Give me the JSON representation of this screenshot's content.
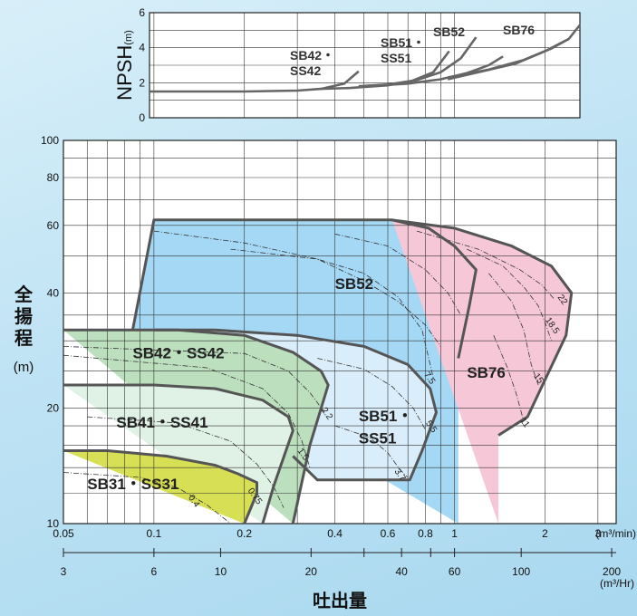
{
  "chart_data": [
    {
      "type": "line",
      "ylabel": "NPSH",
      "ylabel_unit": "(m)",
      "ylim": [
        0,
        6
      ],
      "y_ticks": [
        "0",
        "2",
        "4",
        "6"
      ],
      "series": [
        {
          "name": "SB42・SS42",
          "label_lines": [
            "SB42・",
            "SS42"
          ],
          "x": [
            0.05,
            0.09,
            0.2,
            0.3,
            0.36,
            0.43,
            0.48
          ],
          "y": [
            1.5,
            1.5,
            1.5,
            1.55,
            1.65,
            1.95,
            2.65
          ]
        },
        {
          "name": "SB51・SS51",
          "label_lines": [
            "SB51・",
            "SS51"
          ],
          "x": [
            0.36,
            0.45,
            0.6,
            0.72,
            0.85,
            0.96
          ],
          "y": [
            1.65,
            1.7,
            1.85,
            2.1,
            2.6,
            3.8
          ]
        },
        {
          "name": "SB52",
          "label_lines": [
            "SB52"
          ],
          "x": [
            0.48,
            0.6,
            0.75,
            0.9,
            1.05,
            1.18
          ],
          "y": [
            1.8,
            1.9,
            2.15,
            2.6,
            3.4,
            4.6
          ]
        },
        {
          "name": "SB76",
          "label_lines": [
            "SB76"
          ],
          "x": [
            0.95,
            1.2,
            1.6,
            2.0,
            2.4,
            2.8
          ],
          "y": [
            2.2,
            2.6,
            3.1,
            3.8,
            4.5,
            5.3
          ]
        }
      ],
      "extra_lines": [
        {
          "x": [
            0.5,
            0.7,
            0.9,
            1.1,
            1.3,
            1.45
          ],
          "y": [
            1.8,
            1.95,
            2.2,
            2.55,
            3.0,
            3.5
          ]
        },
        {
          "x": [
            0.95,
            1.3,
            1.7,
            2.1,
            2.4
          ],
          "y": [
            2.3,
            2.75,
            3.3,
            3.95,
            4.5
          ]
        }
      ]
    },
    {
      "type": "area",
      "ylabel": "全揚程",
      "ylabel_unit": "(m)",
      "xlabel": "吐出量",
      "ylim": [
        10,
        100
      ],
      "xlim": [
        0.05,
        3.45
      ],
      "log_x": true,
      "log_y": true,
      "y_ticks": [
        "10",
        "20",
        "40",
        "60",
        "80",
        "100"
      ],
      "x_ticks": [
        "0.05",
        "0.1",
        "0.2",
        "0.4",
        "0.6",
        "0.8",
        "1",
        "2",
        "3"
      ],
      "x_unit_min": "(m³/min)",
      "x2_ticks": [
        "3",
        "6",
        "10",
        "20",
        "40",
        "60",
        "100",
        "200"
      ],
      "x2_unit": "(m³/Hr)",
      "regions": [
        {
          "name": "SB52",
          "fill": "#a5d8f5",
          "outline_x": [
            0.085,
            0.1,
            0.62,
            0.82,
            1.0,
            1.18,
            1.12,
            1.03
          ],
          "outline_y": [
            32,
            62,
            62,
            59,
            53,
            46,
            37,
            27
          ]
        },
        {
          "name": "SB76",
          "fill": "#f6c7d7",
          "outline_x": [
            0.62,
            1.0,
            1.55,
            2.1,
            2.45,
            2.35,
            1.75,
            1.4
          ],
          "outline_y": [
            62,
            59,
            53,
            47,
            40,
            31,
            19,
            17
          ]
        },
        {
          "name": "SB51・SS51",
          "fill": "#d9eefa",
          "outline_x": [
            0.1,
            0.16,
            0.3,
            0.5,
            0.7,
            0.83,
            0.87,
            0.78,
            0.71,
            0.35,
            0.29
          ],
          "outline_y": [
            32,
            32,
            31,
            29,
            26,
            22.5,
            19.5,
            15.5,
            13,
            13,
            15
          ]
        },
        {
          "name": "SB42・SS42",
          "fill": "#bcdfbe",
          "outline_x": [
            0.05,
            0.12,
            0.2,
            0.29,
            0.36,
            0.38,
            0.33,
            0.29
          ],
          "outline_y": [
            32,
            32,
            31,
            28,
            25,
            23,
            16,
            10
          ]
        },
        {
          "name": "SB41・SS41",
          "fill": "#e0f1e5",
          "outline_x": [
            0.05,
            0.1,
            0.16,
            0.23,
            0.28,
            0.29,
            0.25,
            0.23
          ],
          "outline_y": [
            23,
            23,
            22.5,
            21,
            19,
            17.5,
            12.5,
            10
          ]
        },
        {
          "name": "SB31・SS31",
          "fill": "#d7df54",
          "outline_x": [
            0.05,
            0.07,
            0.11,
            0.16,
            0.19,
            0.22,
            0.22,
            0.2
          ],
          "outline_y": [
            15.5,
            15.5,
            15,
            14.2,
            13.5,
            12.8,
            12,
            10
          ]
        }
      ],
      "power_curves": [
        {
          "label": "0.4",
          "x": [
            0.05,
            0.09,
            0.12,
            0.15,
            0.18
          ],
          "y": [
            13.6,
            13.2,
            12.4,
            11.2,
            10
          ],
          "label_x": 0.13,
          "label_y": 11.7
        },
        {
          "label": "0.75",
          "x": [
            0.06,
            0.12,
            0.18,
            0.22,
            0.25,
            0.27
          ],
          "y": [
            19,
            18.3,
            16.4,
            14.3,
            12.5,
            11
          ],
          "label_x": 0.205,
          "label_y": 12.2
        },
        {
          "label": "1.5",
          "x": [
            0.05,
            0.15,
            0.23,
            0.28,
            0.31,
            0.33
          ],
          "y": [
            27.5,
            25.5,
            22.5,
            19.4,
            16.5,
            14
          ],
          "label_x": 0.3,
          "label_y": 15.5
        },
        {
          "label": "2.2",
          "x": [
            0.05,
            0.2,
            0.28,
            0.33,
            0.37
          ],
          "y": [
            29,
            27.8,
            25,
            22,
            19.5
          ],
          "label_x": 0.36,
          "label_y": 19.8
        },
        {
          "label": "3.7",
          "x": [
            0.4,
            0.52,
            0.6,
            0.66,
            0.7
          ],
          "y": [
            18,
            16.8,
            15.3,
            13.8,
            13.2
          ],
          "label_x": 0.63,
          "label_y": 13.7
        },
        {
          "label": "5.5",
          "x": [
            0.35,
            0.5,
            0.62,
            0.73,
            0.8
          ],
          "y": [
            27,
            25.3,
            22.8,
            20,
            17.6
          ],
          "label_x": 0.8,
          "label_y": 18.3
        },
        {
          "label": "7.5",
          "x": [
            0.18,
            0.35,
            0.5,
            0.65,
            0.78,
            0.85
          ],
          "y": [
            52,
            49,
            45,
            39,
            32,
            24
          ],
          "label_x": 0.79,
          "label_y": 24.5
        },
        {
          "label": "11",
          "x": [
            1.35,
            1.5,
            1.6,
            1.7
          ],
          "y": [
            31,
            25.5,
            22,
            18.5
          ],
          "label_x": 1.65,
          "label_y": 18.6
        },
        {
          "label": "15",
          "x": [
            1.3,
            1.55,
            1.7,
            1.8,
            1.9
          ],
          "y": [
            45,
            38,
            32,
            26,
            23
          ],
          "label_x": 1.83,
          "label_y": 24.3
        },
        {
          "label": "18.5",
          "x": [
            1.1,
            1.45,
            1.7,
            1.9,
            2.0,
            2.1
          ],
          "y": [
            52,
            47,
            41.5,
            37,
            33.5,
            30
          ],
          "label_x": 2.0,
          "label_y": 34
        },
        {
          "label": "22",
          "x": [
            0.75,
            1.2,
            1.65,
            1.95,
            2.15
          ],
          "y": [
            58,
            52,
            46,
            42,
            38.5
          ],
          "label_x": 2.2,
          "label_y": 39
        }
      ],
      "extra_dashed": [
        {
          "x": [
            0.1,
            0.2,
            0.35,
            0.5,
            0.65,
            0.8,
            0.9
          ],
          "y": [
            58,
            54,
            49,
            43,
            38,
            33,
            29
          ]
        },
        {
          "x": [
            0.4,
            0.6,
            0.8,
            0.95,
            1.05
          ],
          "y": [
            57,
            53,
            46,
            40,
            35
          ]
        }
      ]
    }
  ]
}
